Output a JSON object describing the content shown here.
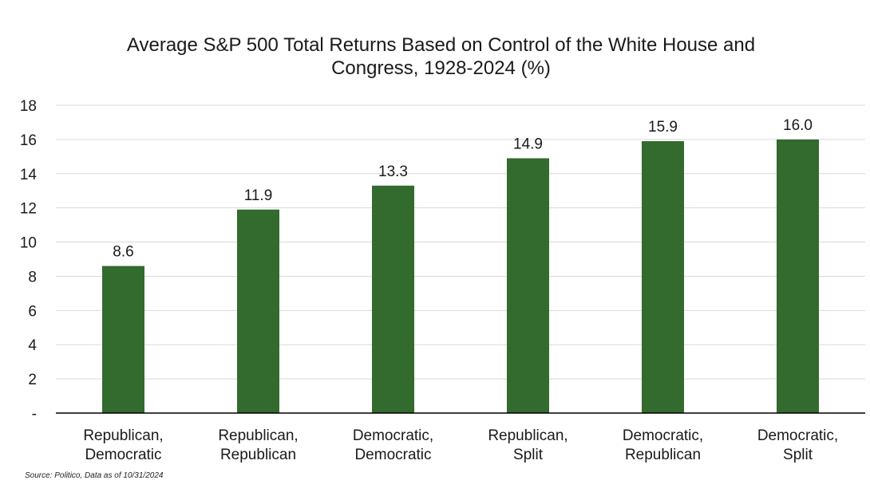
{
  "chart_data": {
    "type": "bar",
    "title": "Average S&P 500 Total Returns Based on Control of the White House and Congress, 1928-2024 (%)",
    "title_lines": [
      "Average S&P 500 Total Returns Based on Control of the White House and",
      "Congress, 1928-2024 (%)"
    ],
    "categories": [
      [
        "Republican,",
        "Democratic"
      ],
      [
        "Republican,",
        "Republican"
      ],
      [
        "Democratic,",
        "Democratic"
      ],
      [
        "Republican,",
        "Split"
      ],
      [
        "Democratic,",
        "Republican"
      ],
      [
        "Democratic,",
        "Split"
      ]
    ],
    "values": [
      8.6,
      11.9,
      13.3,
      14.9,
      15.9,
      16.0
    ],
    "data_labels": [
      "8.6",
      "11.9",
      "13.3",
      "14.9",
      "15.9",
      "16.0"
    ],
    "ylim": [
      0,
      18
    ],
    "y_ticks": [
      0,
      2,
      4,
      6,
      8,
      10,
      12,
      14,
      16,
      18
    ],
    "y_tick_labels": [
      "-",
      "2",
      "4",
      "6",
      "8",
      "10",
      "12",
      "14",
      "16",
      "18"
    ],
    "grid": true,
    "legend": "none",
    "colors": {
      "bar": "#336a2d",
      "grid": "#d9d9d9",
      "axis": "#000000",
      "text": "#1a1a1a"
    }
  },
  "source": "Source: Politico, Data as of 10/31/2024"
}
